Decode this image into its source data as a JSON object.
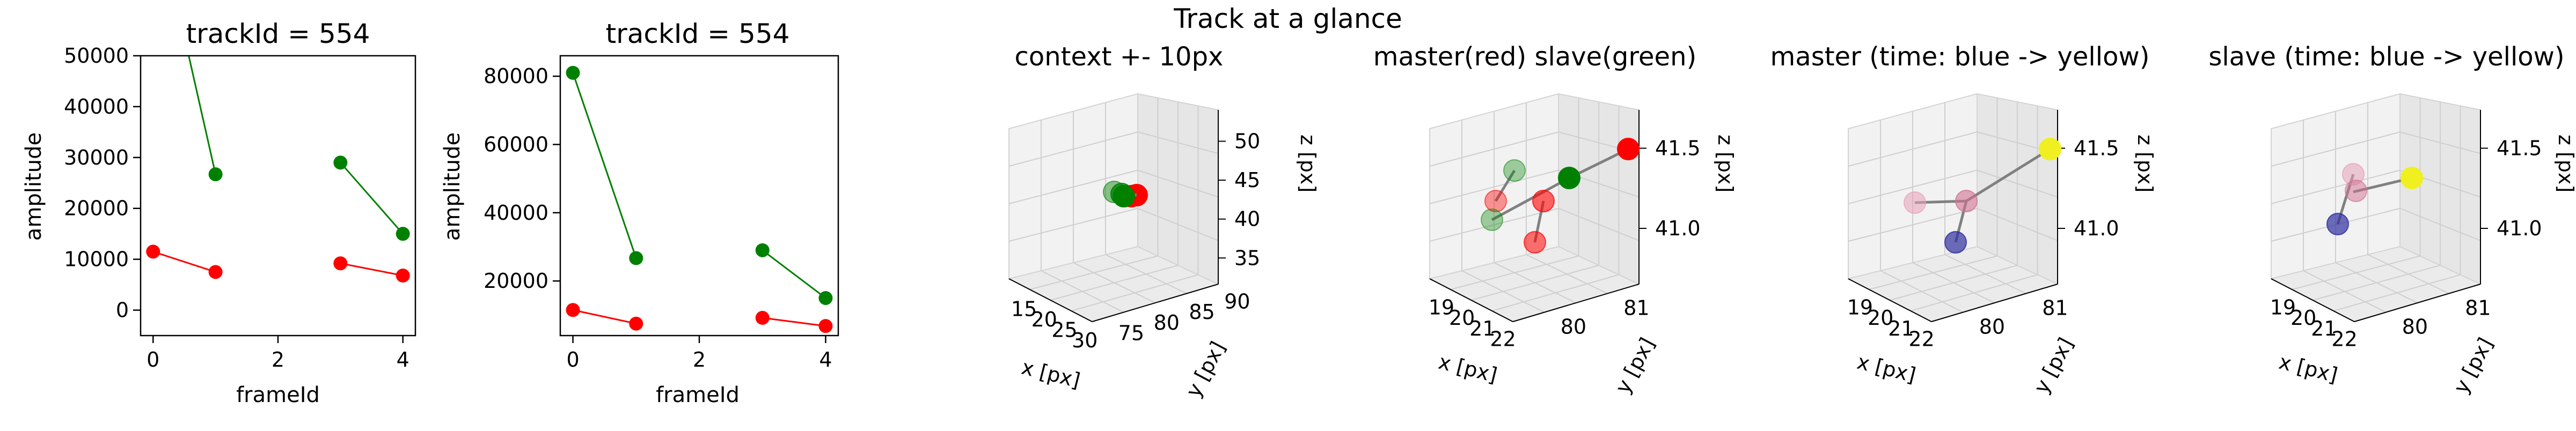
{
  "figure": {
    "suptitle": "Track at a glance"
  },
  "colors": {
    "master": "#ff0000",
    "slave": "#008000",
    "link": "#808080",
    "early": "#3030a0",
    "late": "#f0f020"
  },
  "chart_data": [
    {
      "type": "line",
      "title": "trackId = 554",
      "xlabel": "frameId",
      "ylabel": "amplitude",
      "xlim": [
        -0.2,
        4.2
      ],
      "ylim": [
        -5000,
        50000
      ],
      "xticks": [
        "0",
        "2",
        "4"
      ],
      "yticks": [
        "0",
        "10000",
        "20000",
        "30000",
        "40000",
        "50000"
      ],
      "series": [
        {
          "color": "red",
          "segments": [
            [
              [
                0,
                11500
              ],
              [
                1,
                7500
              ]
            ],
            [
              [
                3,
                9200
              ],
              [
                4,
                6800
              ]
            ]
          ]
        },
        {
          "color": "green",
          "segments": [
            [
              [
                0,
                81000
              ],
              [
                1,
                26700
              ]
            ],
            [
              [
                3,
                29000
              ],
              [
                4,
                15000
              ]
            ]
          ]
        }
      ]
    },
    {
      "type": "line",
      "title": "trackId = 554",
      "xlabel": "frameId",
      "ylabel": "amplitude",
      "xlim": [
        -0.2,
        4.2
      ],
      "ylim": [
        4000,
        86000
      ],
      "xticks": [
        "0",
        "2",
        "4"
      ],
      "yticks": [
        "20000",
        "40000",
        "60000",
        "80000"
      ],
      "series": [
        {
          "color": "red",
          "segments": [
            [
              [
                0,
                11500
              ],
              [
                1,
                7500
              ]
            ],
            [
              [
                3,
                9200
              ],
              [
                4,
                6800
              ]
            ]
          ]
        },
        {
          "color": "green",
          "segments": [
            [
              [
                0,
                81000
              ],
              [
                1,
                26700
              ]
            ],
            [
              [
                3,
                29000
              ],
              [
                4,
                15000
              ]
            ]
          ]
        }
      ]
    },
    {
      "type": "scatter",
      "title": "context +- 10px",
      "xlabel": "x [px]",
      "ylabel": "y [px]",
      "zlabel": "z [px]",
      "xticks": [
        "15",
        "20",
        "25",
        "30"
      ],
      "yticks": [
        "75",
        "80",
        "85",
        "90"
      ],
      "zticks": [
        "35",
        "40",
        "45",
        "50"
      ]
    },
    {
      "type": "scatter",
      "title": "master(red) slave(green)",
      "xlabel": "x [px]",
      "ylabel": "y [px]",
      "zlabel": "z [px]",
      "xticks": [
        "19",
        "20",
        "21",
        "22"
      ],
      "yticks": [
        "80",
        "81"
      ],
      "zticks": [
        "41.0",
        "41.5"
      ]
    },
    {
      "type": "scatter",
      "title": "master (time: blue -> yellow)",
      "xlabel": "x [px]",
      "ylabel": "y [px]",
      "zlabel": "z [px]",
      "xticks": [
        "19",
        "20",
        "21",
        "22"
      ],
      "yticks": [
        "80",
        "81"
      ],
      "zticks": [
        "41.0",
        "41.5"
      ]
    },
    {
      "type": "scatter",
      "title": "slave (time: blue -> yellow)",
      "xlabel": "x [px]",
      "ylabel": "y [px]",
      "zlabel": "z [px]",
      "xticks": [
        "19",
        "20",
        "21",
        "22"
      ],
      "yticks": [
        "80",
        "81"
      ],
      "zticks": [
        "41.0",
        "41.5"
      ]
    }
  ]
}
